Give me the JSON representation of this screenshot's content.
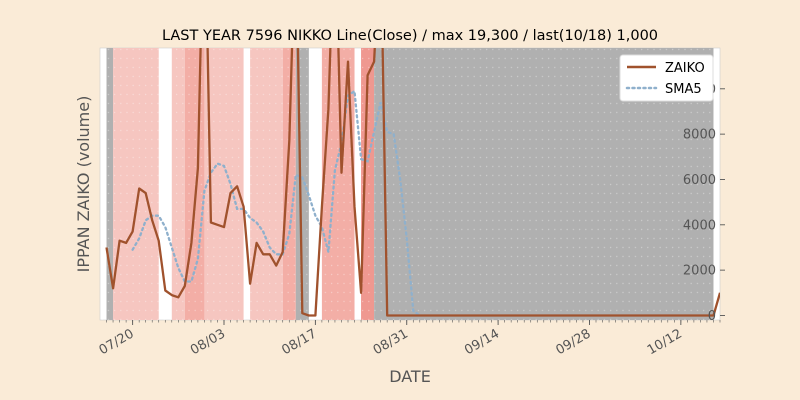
{
  "chart_data": {
    "type": "line",
    "title": "LAST YEAR 7596 NIKKO Line(Close) / max 19,300 / last(10/18) 1,000",
    "xlabel": "DATE",
    "ylabel": "IPPAN ZAIKO (volume)",
    "ylim": [
      -200,
      11800
    ],
    "xlim": [
      "07/15",
      "10/18"
    ],
    "y_axis_side": "right",
    "grid": false,
    "legend_position": "top-right",
    "x_ticks": [
      "07/20",
      "08/03",
      "08/17",
      "08/31",
      "09/14",
      "09/28",
      "10/12"
    ],
    "y_ticks": [
      0,
      2000,
      4000,
      6000,
      8000,
      10000
    ],
    "colors": {
      "background": "#faebd7",
      "plot_background": "#ffffff",
      "zaiko": "#a0522d",
      "sma5": "#8fb0cc",
      "band_light": "#f6c6c0",
      "band_mid": "#f3aea6",
      "band_strong": "#ef9890",
      "band_gray": "#b0b0b0"
    },
    "background_bands": [
      {
        "start": "07/16",
        "end": "07/17",
        "level": "gray"
      },
      {
        "start": "07/17",
        "end": "07/24",
        "level": "light"
      },
      {
        "start": "07/26",
        "end": "07/28",
        "level": "light"
      },
      {
        "start": "07/28",
        "end": "07/31",
        "level": "mid"
      },
      {
        "start": "07/31",
        "end": "08/06",
        "level": "light"
      },
      {
        "start": "08/07",
        "end": "08/12",
        "level": "light"
      },
      {
        "start": "08/12",
        "end": "08/14",
        "level": "mid"
      },
      {
        "start": "08/14",
        "end": "08/16",
        "level": "gray"
      },
      {
        "start": "08/18",
        "end": "08/23",
        "level": "mid"
      },
      {
        "start": "08/24",
        "end": "08/26",
        "level": "strong"
      },
      {
        "start": "08/26",
        "end": "10/17",
        "level": "gray"
      }
    ],
    "series": [
      {
        "name": "ZAIKO",
        "style": "solid",
        "points": [
          [
            "07/16",
            3000
          ],
          [
            "07/17",
            1200
          ],
          [
            "07/18",
            3300
          ],
          [
            "07/19",
            3200
          ],
          [
            "07/20",
            3700
          ],
          [
            "07/21",
            5600
          ],
          [
            "07/22",
            5400
          ],
          [
            "07/23",
            4200
          ],
          [
            "07/24",
            3300
          ],
          [
            "07/25",
            1100
          ],
          [
            "07/26",
            900
          ],
          [
            "07/27",
            800
          ],
          [
            "07/28",
            1300
          ],
          [
            "07/29",
            3200
          ],
          [
            "07/30",
            6500
          ],
          [
            "07/31",
            19300
          ],
          [
            "08/01",
            4100
          ],
          [
            "08/02",
            4000
          ],
          [
            "08/03",
            3900
          ],
          [
            "08/04",
            5400
          ],
          [
            "08/05",
            5700
          ],
          [
            "08/06",
            4800
          ],
          [
            "08/07",
            1400
          ],
          [
            "08/08",
            3200
          ],
          [
            "08/09",
            2700
          ],
          [
            "08/10",
            2700
          ],
          [
            "08/11",
            2200
          ],
          [
            "08/12",
            2800
          ],
          [
            "08/13",
            7700
          ],
          [
            "08/14",
            17500
          ],
          [
            "08/15",
            100
          ],
          [
            "08/16",
            0
          ],
          [
            "08/17",
            0
          ],
          [
            "08/18",
            4800
          ],
          [
            "08/19",
            9100
          ],
          [
            "08/20",
            18000
          ],
          [
            "08/21",
            6300
          ],
          [
            "08/22",
            11200
          ],
          [
            "08/23",
            4800
          ],
          [
            "08/24",
            1000
          ],
          [
            "08/25",
            10600
          ],
          [
            "08/26",
            11200
          ],
          [
            "08/27",
            17000
          ],
          [
            "08/28",
            0
          ],
          [
            "10/17",
            0
          ],
          [
            "10/18",
            1000
          ]
        ]
      },
      {
        "name": "SMA5",
        "style": "dotted",
        "points": [
          [
            "07/20",
            2900
          ],
          [
            "07/21",
            3400
          ],
          [
            "07/22",
            4200
          ],
          [
            "07/23",
            4400
          ],
          [
            "07/24",
            4400
          ],
          [
            "07/25",
            3900
          ],
          [
            "07/26",
            3000
          ],
          [
            "07/27",
            2100
          ],
          [
            "07/28",
            1500
          ],
          [
            "07/29",
            1500
          ],
          [
            "07/30",
            2500
          ],
          [
            "07/31",
            5500
          ],
          [
            "08/01",
            6300
          ],
          [
            "08/02",
            6700
          ],
          [
            "08/03",
            6600
          ],
          [
            "08/04",
            5800
          ],
          [
            "08/05",
            4700
          ],
          [
            "08/06",
            4700
          ],
          [
            "08/07",
            4300
          ],
          [
            "08/08",
            4100
          ],
          [
            "08/09",
            3700
          ],
          [
            "08/10",
            3000
          ],
          [
            "08/11",
            2700
          ],
          [
            "08/12",
            2700
          ],
          [
            "08/13",
            3600
          ],
          [
            "08/14",
            6200
          ],
          [
            "08/15",
            6100
          ],
          [
            "08/16",
            5300
          ],
          [
            "08/17",
            4400
          ],
          [
            "08/18",
            3900
          ],
          [
            "08/19",
            2800
          ],
          [
            "08/20",
            6400
          ],
          [
            "08/21",
            7600
          ],
          [
            "08/22",
            9700
          ],
          [
            "08/23",
            9900
          ],
          [
            "08/24",
            6900
          ],
          [
            "08/25",
            6800
          ],
          [
            "08/26",
            8100
          ],
          [
            "08/27",
            9400
          ],
          [
            "08/28",
            8100
          ],
          [
            "08/29",
            8000
          ],
          [
            "08/30",
            6000
          ],
          [
            "08/31",
            3400
          ],
          [
            "09/01",
            200
          ],
          [
            "09/02",
            0
          ]
        ]
      }
    ]
  }
}
